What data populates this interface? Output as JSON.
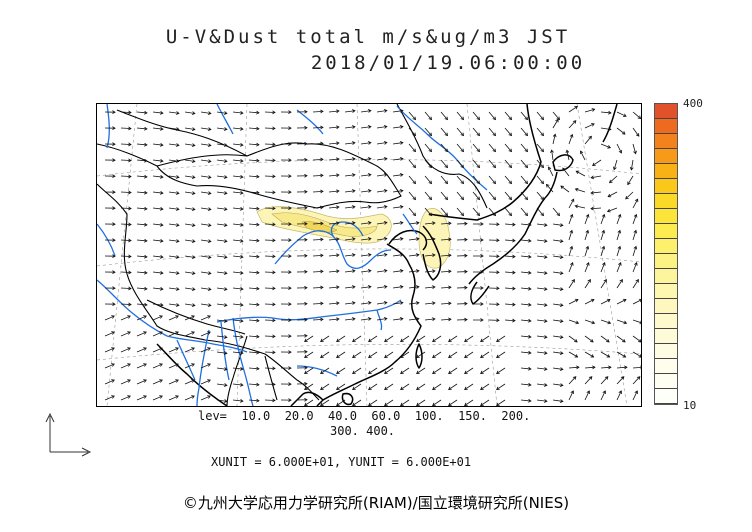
{
  "header": {
    "title": "U-V&Dust total m/s&ug/m3 JST",
    "datetime": "2018/01/19.06:00:00"
  },
  "legend": {
    "max_label": "400",
    "min_label": "10",
    "colors": [
      "#e2522a",
      "#ed6a1f",
      "#f3821c",
      "#f69a17",
      "#f8b215",
      "#fac81a",
      "#fbd928",
      "#fde43a",
      "#fdeb52",
      "#fdf06c",
      "#fdf385",
      "#fdf59d",
      "#fef7b1",
      "#fef8c0",
      "#fefacd",
      "#fefbd8",
      "#fefce2",
      "#fffdeb",
      "#fffef3",
      "#fffff9"
    ]
  },
  "levels": {
    "line1": "lev=  10.0  20.0  40.0  60.0  100.  150.  200.",
    "line2": "300.  400."
  },
  "units": {
    "text": "XUNIT = 6.000E+01, YUNIT = 6.000E+01"
  },
  "credit": {
    "text": "©九州大学応用力学研究所(RIAM)/国立環境研究所(NIES)"
  },
  "colors": {
    "river": "#1f6fe0",
    "coast": "#000000",
    "vector": "#111111",
    "dust_light": "#fdf4b8",
    "dust_mid": "#f8e98a",
    "dust_dark": "#f1d65c"
  },
  "map": {
    "region": "East Asia",
    "features": [
      "wind-vectors",
      "coastlines",
      "country-borders",
      "rivers",
      "dust-concentration"
    ]
  }
}
